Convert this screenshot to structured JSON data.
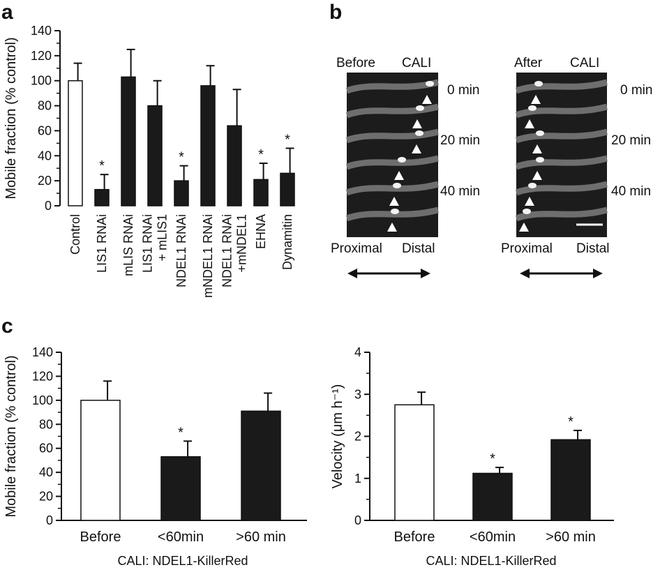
{
  "panels": {
    "a": "a",
    "b": "b",
    "c": "c"
  },
  "colors": {
    "bar_open": "#ffffff",
    "bar_filled": "#1a1a1a",
    "axis": "#111111",
    "micrograph_bg": "#1c1c1c",
    "dendrite": "#8a8a8a"
  },
  "chart_data": [
    {
      "id": "a",
      "type": "bar",
      "ylabel": "Mobile fraction (% control)",
      "ylim": [
        0,
        140
      ],
      "yticks": [
        "0",
        "20",
        "40",
        "60",
        "80",
        "100",
        "120",
        "140"
      ],
      "categories": [
        [
          "Control"
        ],
        [
          "LIS1 RNAi"
        ],
        [
          "mLIS RNAi"
        ],
        [
          "LIS1 RNAi",
          "+ mLIS1"
        ],
        [
          "NDEL1 RNAi"
        ],
        [
          "mNDEL1 RNAi"
        ],
        [
          "NDEL1 RNAi",
          "+mNDEL1"
        ],
        [
          "EHNA"
        ],
        [
          "Dynamitin"
        ]
      ],
      "values": [
        100,
        13,
        103,
        80,
        20,
        96,
        64,
        21,
        26
      ],
      "errors": [
        14,
        12,
        22,
        20,
        12,
        16,
        29,
        13,
        20
      ],
      "fill": [
        "open",
        "filled",
        "filled",
        "filled",
        "filled",
        "filled",
        "filled",
        "filled",
        "filled"
      ],
      "significant": [
        false,
        true,
        false,
        false,
        true,
        false,
        false,
        true,
        true
      ],
      "star": "*"
    },
    {
      "id": "c-left",
      "type": "bar",
      "ylabel": "Mobile fraction (% control)",
      "xlabel": "CALI: NDEL1-KillerRed",
      "ylim": [
        0,
        140
      ],
      "yticks": [
        "0",
        "20",
        "40",
        "60",
        "80",
        "100",
        "120",
        "140"
      ],
      "categories": [
        "Before",
        "<60min",
        ">60 min"
      ],
      "values": [
        100,
        53,
        91
      ],
      "errors": [
        16,
        13,
        15
      ],
      "fill": [
        "open",
        "filled",
        "filled"
      ],
      "significant": [
        false,
        true,
        false
      ],
      "star": "*"
    },
    {
      "id": "c-right",
      "type": "bar",
      "ylabel": "Velocity (μm h⁻¹)",
      "xlabel": "CALI: NDEL1-KillerRed",
      "ylim": [
        0,
        4
      ],
      "yticks": [
        "0",
        "1",
        "2",
        "3",
        "4"
      ],
      "categories": [
        "Before",
        "<60min",
        ">60 min"
      ],
      "values": [
        2.75,
        1.12,
        1.92
      ],
      "errors": [
        0.3,
        0.14,
        0.22
      ],
      "fill": [
        "open",
        "filled",
        "filled"
      ],
      "significant": [
        false,
        true,
        true
      ],
      "star": "*"
    }
  ],
  "micrographs": {
    "before": {
      "title_left": "Before",
      "title_right": "CALI",
      "time_labels": [
        "0 min",
        "20 min",
        "40 min"
      ],
      "axis_left": "Proximal",
      "axis_right": "Distal"
    },
    "after": {
      "title_left": "After",
      "title_right": "CALI",
      "time_labels": [
        "0 min",
        "20 min",
        "40 min"
      ],
      "axis_left": "Proximal",
      "axis_right": "Distal"
    }
  }
}
